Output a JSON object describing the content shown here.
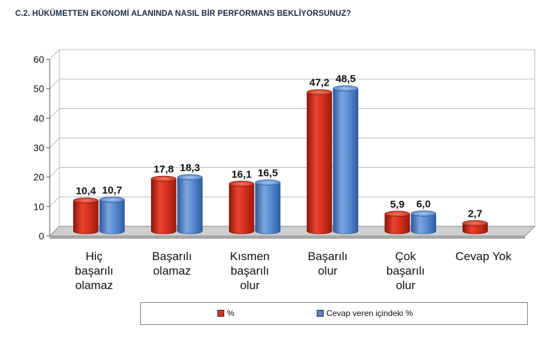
{
  "title": "C.2. HÜKÜMETTEN EKONOMİ ALANINDA NASIL BİR PERFORMANS BEKLİYORSUNUZ?",
  "colors": {
    "series1": "#d8321f",
    "series2": "#4f86cc",
    "grid": "#b9b9b9",
    "floor": "#a7a7a7"
  },
  "chart_data": {
    "type": "bar",
    "title": "C.2. HÜKÜMETTEN EKONOMİ ALANINDA NASIL BİR PERFORMANS BEKLİYORSUNUZ?",
    "categories": [
      "Hiç\nbaşarılı\nolamaz",
      "Başarılı\nolamaz",
      "Kısmen\nbaşarılı\nolur",
      "Başarılı\nolur",
      "Çok\nbaşarılı\nolur",
      "Cevap Yok"
    ],
    "series": [
      {
        "name": "%",
        "values": [
          10.4,
          17.8,
          16.1,
          47.2,
          5.9,
          2.7
        ],
        "labels": [
          "10,4",
          "17,8",
          "16,1",
          "47,2",
          "5,9",
          "2,7"
        ]
      },
      {
        "name": "Cevap veren içindeki %",
        "values": [
          10.7,
          18.3,
          16.5,
          48.5,
          6.0,
          null
        ],
        "labels": [
          "10,7",
          "18,3",
          "16,5",
          "48,5",
          "6,0",
          ""
        ]
      }
    ],
    "yticks": [
      "0",
      "10",
      "20",
      "30",
      "40",
      "50",
      "60"
    ],
    "ylim": [
      0,
      60
    ],
    "grid": true,
    "legend_position": "bottom"
  },
  "legend": {
    "items": [
      {
        "label": "%"
      },
      {
        "label": "Cevap veren içindeki %"
      }
    ]
  }
}
